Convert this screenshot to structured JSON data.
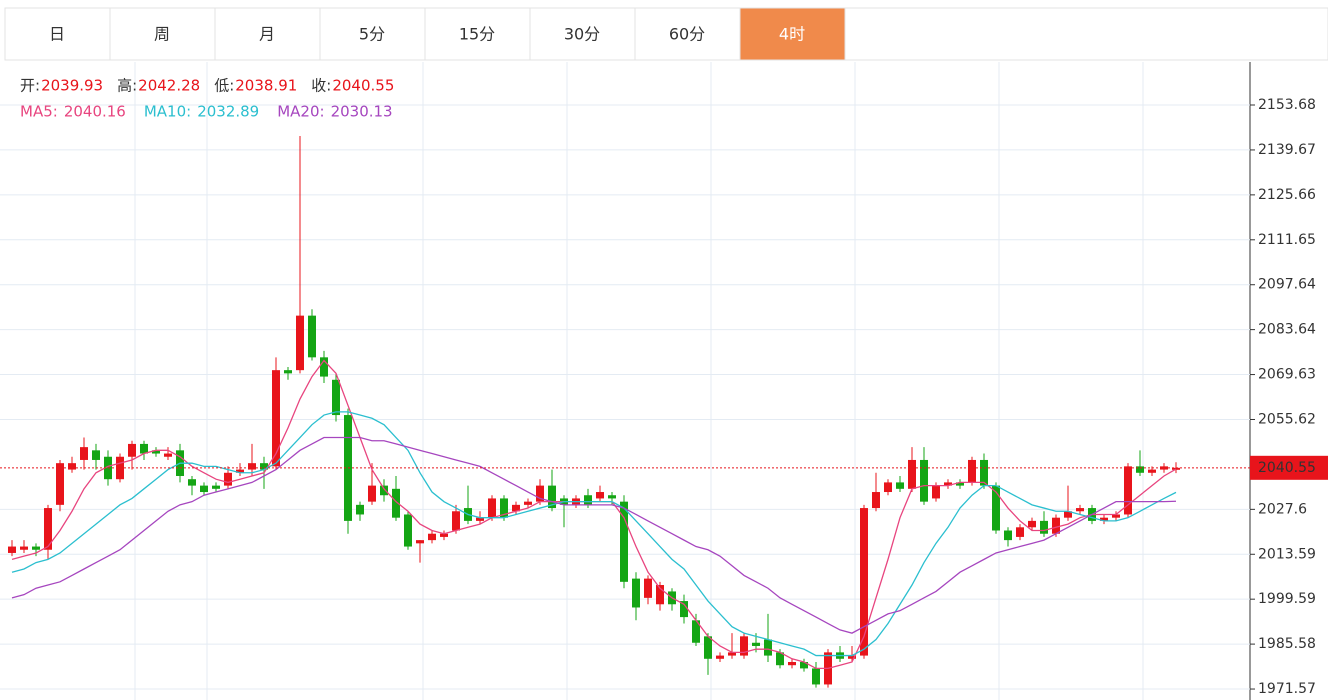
{
  "tabs": {
    "items": [
      "日",
      "周",
      "月",
      "5分",
      "15分",
      "30分",
      "60分",
      "4时"
    ],
    "active": 7
  },
  "chart_data": {
    "type": "candlestick",
    "ohlc_labels": [
      "开:",
      "高:",
      "低:",
      "收:"
    ],
    "up_color": "#e8141b",
    "down_color": "#14a514",
    "open": [
      2014,
      2015,
      2016,
      2015,
      2029,
      2040,
      2043,
      2046,
      2044,
      2037,
      2044,
      2048,
      2046,
      2044,
      2046,
      2037,
      2035,
      2035,
      2035,
      2039,
      2040,
      2042,
      2041,
      2071,
      2071,
      2088,
      2075,
      2068,
      2057,
      2029,
      2030,
      2035,
      2034,
      2026,
      2017,
      2018,
      2019,
      2021,
      2028,
      2024,
      2025,
      2031,
      2027,
      2029,
      2030,
      2035,
      2031,
      2029,
      2032,
      2031,
      2032,
      2030,
      2006,
      2000,
      1998,
      2002,
      1999,
      1993,
      1988,
      1981,
      1982,
      1982,
      1986,
      1987,
      1983,
      1979,
      1980,
      1978,
      1973,
      1983,
      1981,
      1982,
      2028,
      2033,
      2036,
      2034,
      2043,
      2031,
      2035,
      2036,
      2036,
      2043,
      2035,
      2021,
      2019,
      2022,
      2024,
      2020,
      2025,
      2027,
      2028,
      2024,
      2025,
      2026,
      2041,
      2039,
      2040,
      2039.93
    ],
    "high": [
      2018,
      2018,
      2017,
      2029,
      2043,
      2044,
      2050,
      2048,
      2046,
      2045,
      2049,
      2049,
      2047,
      2047,
      2048,
      2038,
      2036,
      2036,
      2041,
      2042,
      2048,
      2044,
      2075,
      2072,
      2144,
      2090,
      2077,
      2070,
      2059,
      2030,
      2042,
      2037,
      2038,
      2027,
      2018,
      2021,
      2021,
      2029,
      2035,
      2027,
      2032,
      2032,
      2030,
      2031,
      2037,
      2040,
      2032,
      2032,
      2034,
      2035,
      2033,
      2032,
      2008,
      2007,
      2005,
      2003,
      2001,
      1995,
      1989,
      1983,
      1989,
      1989,
      1989,
      1995,
      1984,
      1981,
      1981,
      1980,
      1984,
      1985,
      1985,
      2029,
      2039,
      2037,
      2038,
      2047,
      2047,
      2036,
      2037,
      2037,
      2044,
      2045,
      2036,
      2022,
      2023,
      2025,
      2027,
      2026,
      2035,
      2029,
      2029,
      2026,
      2027,
      2042,
      2046,
      2041,
      2042,
      2042.28
    ],
    "low": [
      2013,
      2014,
      2013,
      2012,
      2027,
      2039,
      2040,
      2040,
      2035,
      2036,
      2040,
      2043,
      2044,
      2043,
      2036,
      2032,
      2032,
      2033,
      2034,
      2038,
      2038,
      2034,
      2040,
      2068,
      2070,
      2074,
      2067,
      2055,
      2020,
      2024,
      2029,
      2030,
      2024,
      2015,
      2011,
      2017,
      2018,
      2020,
      2023,
      2023,
      2024,
      2024,
      2026,
      2028,
      2029,
      2027,
      2022,
      2028,
      2028,
      2030,
      2029,
      2003,
      1993,
      1998,
      1996,
      1996,
      1992,
      1985,
      1976,
      1980,
      1981,
      1981,
      1983,
      1980,
      1978,
      1978,
      1977,
      1972,
      1972,
      1980,
      1980,
      1981,
      2027,
      2032,
      2033,
      2033,
      2029,
      2030,
      2034,
      2034,
      2035,
      2034,
      2020,
      2016,
      2018,
      2021,
      2019,
      2019,
      2024,
      2026,
      2023,
      2023,
      2024,
      2025,
      2038,
      2038,
      2039,
      2038.91
    ],
    "close": [
      2016,
      2016,
      2015,
      2028,
      2042,
      2042,
      2047,
      2043,
      2037,
      2044,
      2048,
      2045,
      2045,
      2045,
      2038,
      2035,
      2033,
      2034,
      2039,
      2040,
      2042,
      2040,
      2071,
      2070,
      2088,
      2075,
      2069,
      2057,
      2024,
      2026,
      2035,
      2032,
      2025,
      2016,
      2018,
      2020,
      2020,
      2027,
      2024,
      2025,
      2031,
      2025,
      2029,
      2030,
      2035,
      2028,
      2029,
      2031,
      2029,
      2033,
      2031,
      2005,
      1997,
      2006,
      2004,
      1998,
      1994,
      1986,
      1981,
      1982,
      1983,
      1988,
      1985,
      1982,
      1979,
      1980,
      1978,
      1973,
      1983,
      1981,
      1982,
      2028,
      2033,
      2036,
      2034,
      2043,
      2030,
      2035,
      2036,
      2035,
      2043,
      2035,
      2021,
      2018,
      2022,
      2024,
      2020,
      2025,
      2027,
      2028,
      2024,
      2025,
      2026,
      2041,
      2039,
      2040,
      2041,
      2040.55
    ],
    "series": [
      {
        "name": "MA5:",
        "color": "#e8457f",
        "values": [
          2012,
          2013,
          2014,
          2016,
          2021,
          2027,
          2034,
          2039,
          2041,
          2042,
          2043,
          2045,
          2046,
          2046,
          2044,
          2041,
          2039,
          2037,
          2036,
          2037,
          2038,
          2039,
          2045,
          2053,
          2062,
          2069,
          2074,
          2070,
          2060,
          2050,
          2040,
          2034,
          2030,
          2027,
          2023,
          2021,
          2020,
          2021,
          2022,
          2023,
          2025,
          2026,
          2027,
          2028,
          2030,
          2030,
          2030,
          2030,
          2030,
          2030,
          2030,
          2025,
          2016,
          2008,
          2003,
          2000,
          1998,
          1993,
          1988,
          1985,
          1983,
          1983,
          1984,
          1984,
          1983,
          1981,
          1980,
          1978,
          1978,
          1979,
          1980,
          1988,
          2000,
          2012,
          2025,
          2034,
          2035,
          2035,
          2035,
          2036,
          2036,
          2036,
          2033,
          2028,
          2024,
          2021,
          2021,
          2022,
          2023,
          2025,
          2026,
          2026,
          2026,
          2029,
          2032,
          2035,
          2038,
          2040.16
        ]
      },
      {
        "name": "MA10:",
        "color": "#2bbfcf",
        "values": [
          2008,
          2009,
          2011,
          2012,
          2014,
          2017,
          2020,
          2023,
          2026,
          2029,
          2031,
          2034,
          2037,
          2040,
          2042,
          2042,
          2041,
          2041,
          2040,
          2039,
          2039,
          2040,
          2042,
          2046,
          2050,
          2054,
          2057,
          2058,
          2058,
          2057,
          2056,
          2054,
          2050,
          2046,
          2039,
          2033,
          2030,
          2028,
          2026,
          2025,
          2025,
          2025,
          2026,
          2027,
          2028,
          2029,
          2030,
          2030,
          2030,
          2030,
          2030,
          2028,
          2024,
          2020,
          2016,
          2012,
          2009,
          2004,
          1999,
          1995,
          1991,
          1989,
          1988,
          1987,
          1986,
          1985,
          1984,
          1982,
          1982,
          1982,
          1982,
          1984,
          1987,
          1992,
          1998,
          2004,
          2011,
          2017,
          2022,
          2028,
          2032,
          2035,
          2035,
          2033,
          2031,
          2029,
          2028,
          2027,
          2027,
          2026,
          2025,
          2024,
          2024,
          2025,
          2027,
          2029,
          2031,
          2032.89
        ]
      },
      {
        "name": "MA20:",
        "color": "#a646bf",
        "values": [
          2000,
          2001,
          2003,
          2004,
          2005,
          2007,
          2009,
          2011,
          2013,
          2015,
          2018,
          2021,
          2024,
          2027,
          2029,
          2030,
          2032,
          2033,
          2034,
          2035,
          2036,
          2038,
          2040,
          2043,
          2046,
          2048,
          2050,
          2050,
          2050,
          2050,
          2049,
          2049,
          2048,
          2047,
          2046,
          2045,
          2044,
          2043,
          2042,
          2041,
          2039,
          2037,
          2035,
          2033,
          2031,
          2030,
          2029,
          2029,
          2029,
          2029,
          2029,
          2028,
          2026,
          2024,
          2022,
          2020,
          2018,
          2016,
          2015,
          2013,
          2010,
          2007,
          2005,
          2003,
          2000,
          1998,
          1996,
          1994,
          1992,
          1990,
          1989,
          1991,
          1993,
          1995,
          1996,
          1998,
          2000,
          2002,
          2005,
          2008,
          2010,
          2012,
          2014,
          2015,
          2016,
          2017,
          2018,
          2020,
          2022,
          2024,
          2026,
          2028,
          2030,
          2030,
          2030,
          2030,
          2030,
          2030.13
        ]
      }
    ],
    "ylim": [
      1968.15,
      2167.09
    ],
    "yticks": [
      2153.68,
      2139.67,
      2125.66,
      2111.65,
      2097.64,
      2083.64,
      2069.63,
      2055.62,
      2027.6,
      2013.59,
      1999.59,
      1985.58,
      1971.57
    ],
    "grid": true
  }
}
